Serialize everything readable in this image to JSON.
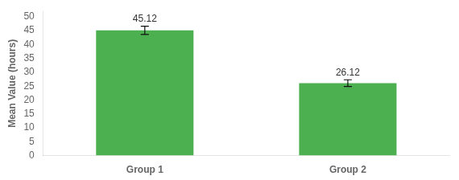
{
  "chart_data": {
    "type": "bar",
    "categories": [
      "Group 1",
      "Group 2"
    ],
    "values": [
      45.12,
      26.12
    ],
    "errors": [
      1.5,
      1.2
    ],
    "color": "#4CAF50",
    "ylabel": "Mean Value (hours)",
    "ylim": [
      0,
      52
    ],
    "yticks": [
      0,
      5,
      10,
      15,
      20,
      25,
      30,
      35,
      40,
      45,
      50
    ],
    "grid": false,
    "data_labels": true
  }
}
